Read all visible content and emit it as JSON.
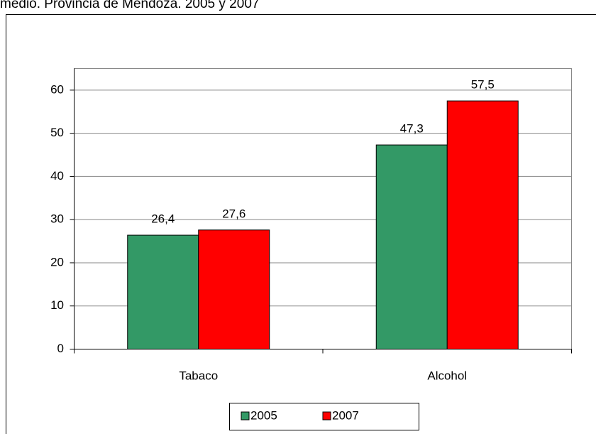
{
  "chart_data": {
    "type": "bar",
    "title": "medio. Provincia de Mendoza. 2005 y 2007",
    "categories": [
      "Tabaco",
      "Alcohol"
    ],
    "series": [
      {
        "name": "2005",
        "color": "#339966",
        "values": [
          26.4,
          47.3
        ],
        "value_labels": [
          "26,4",
          "47,3"
        ]
      },
      {
        "name": "2007",
        "color": "#ff0000",
        "values": [
          27.6,
          57.5
        ],
        "value_labels": [
          "27,6",
          "57,5"
        ]
      }
    ],
    "ylim": [
      0,
      65
    ],
    "yticks": [
      0,
      10,
      20,
      30,
      40,
      50,
      60
    ],
    "grid": true,
    "legend": "bottom"
  }
}
